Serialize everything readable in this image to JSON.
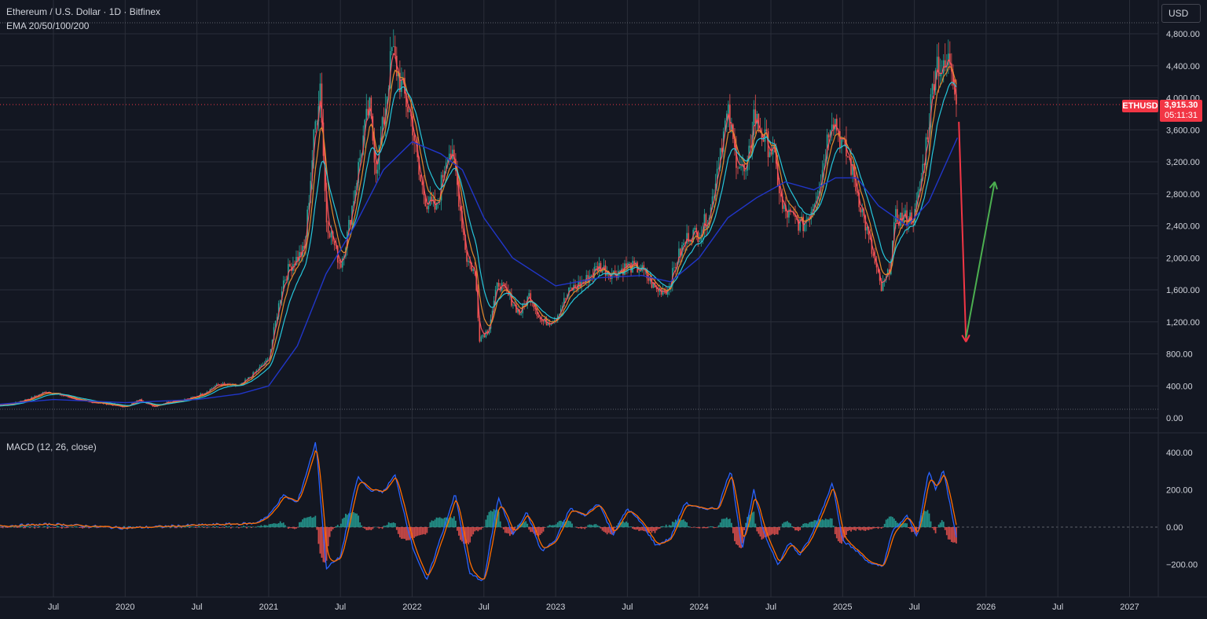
{
  "header": {
    "title": "Ethereum / U.S. Dollar · 1D · Bitfinex",
    "indicator": "EMA 20/50/100/200",
    "macd_label": "MACD (12, 26, close)"
  },
  "currency_button": "USD",
  "last_price": {
    "symbol": "ETHUSD",
    "price": "3,915.30",
    "countdown": "05:11:31",
    "color": "#f23645"
  },
  "colors": {
    "background": "#131722",
    "grid": "#2a2e39",
    "text": "#d1d4dc",
    "up": "#26a69a",
    "down": "#ef5350",
    "ema20": "#f7525f",
    "ema50": "#e58a2c",
    "ema100": "#26c6da",
    "ema200": "#2136c9",
    "macd_line": "#2962ff",
    "signal_line": "#ff6d00",
    "forecast_down": "#f23645",
    "forecast_up": "#4caf50"
  },
  "chart_data": [
    {
      "type": "line",
      "name": "price",
      "y_ticks": [
        "0.00",
        "400.00",
        "800.00",
        "1,200.00",
        "1,600.00",
        "2,000.00",
        "2,400.00",
        "2,800.00",
        "3,200.00",
        "3,600.00",
        "4,000.00",
        "4,400.00",
        "4,800.00"
      ],
      "ylim": [
        0,
        4900
      ],
      "x_ticks": [
        "Jul",
        "2020",
        "Jul",
        "2021",
        "Jul",
        "2022",
        "Jul",
        "2023",
        "Jul",
        "2024",
        "Jul",
        "2025",
        "Jul",
        "2026",
        "Jul",
        "2027"
      ],
      "x_tick_dates": [
        2019.5,
        2020.0,
        2020.5,
        2021.0,
        2021.5,
        2022.0,
        2022.5,
        2023.0,
        2023.5,
        2024.0,
        2024.5,
        2025.0,
        2025.5,
        2026.0,
        2026.5,
        2027.0
      ],
      "series": [
        {
          "points": [
            [
              2018.87,
              130
            ],
            [
              2019.0,
              140
            ],
            [
              2019.2,
              170
            ],
            [
              2019.35,
              250
            ],
            [
              2019.45,
              330
            ],
            [
              2019.55,
              290
            ],
            [
              2019.7,
              210
            ],
            [
              2019.85,
              180
            ],
            [
              2020.0,
              135
            ],
            [
              2020.1,
              230
            ],
            [
              2020.2,
              140
            ],
            [
              2020.3,
              200
            ],
            [
              2020.45,
              240
            ],
            [
              2020.55,
              310
            ],
            [
              2020.65,
              420
            ],
            [
              2020.8,
              400
            ],
            [
              2020.9,
              560
            ],
            [
              2021.0,
              730
            ],
            [
              2021.1,
              1700
            ],
            [
              2021.15,
              1900
            ],
            [
              2021.25,
              2100
            ],
            [
              2021.32,
              3600
            ],
            [
              2021.36,
              4200
            ],
            [
              2021.4,
              2500
            ],
            [
              2021.45,
              2200
            ],
            [
              2021.5,
              1900
            ],
            [
              2021.55,
              2300
            ],
            [
              2021.65,
              3400
            ],
            [
              2021.7,
              3900
            ],
            [
              2021.75,
              3100
            ],
            [
              2021.8,
              3700
            ],
            [
              2021.86,
              4600
            ],
            [
              2021.9,
              4300
            ],
            [
              2021.95,
              4000
            ],
            [
              2022.0,
              3700
            ],
            [
              2022.05,
              3000
            ],
            [
              2022.1,
              2700
            ],
            [
              2022.17,
              2600
            ],
            [
              2022.25,
              3400
            ],
            [
              2022.3,
              3100
            ],
            [
              2022.38,
              2000
            ],
            [
              2022.44,
              1800
            ],
            [
              2022.47,
              1000
            ],
            [
              2022.53,
              1100
            ],
            [
              2022.6,
              1700
            ],
            [
              2022.68,
              1500
            ],
            [
              2022.75,
              1300
            ],
            [
              2022.82,
              1550
            ],
            [
              2022.9,
              1200
            ],
            [
              2022.95,
              1200
            ],
            [
              2023.0,
              1250
            ],
            [
              2023.1,
              1600
            ],
            [
              2023.2,
              1700
            ],
            [
              2023.3,
              1900
            ],
            [
              2023.4,
              1800
            ],
            [
              2023.5,
              1900
            ],
            [
              2023.6,
              1850
            ],
            [
              2023.7,
              1600
            ],
            [
              2023.78,
              1600
            ],
            [
              2023.85,
              2000
            ],
            [
              2023.93,
              2300
            ],
            [
              2024.0,
              2300
            ],
            [
              2024.08,
              2600
            ],
            [
              2024.15,
              3400
            ],
            [
              2024.2,
              3800
            ],
            [
              2024.25,
              3300
            ],
            [
              2024.33,
              3000
            ],
            [
              2024.38,
              3800
            ],
            [
              2024.45,
              3500
            ],
            [
              2024.52,
              3300
            ],
            [
              2024.58,
              2600
            ],
            [
              2024.65,
              2500
            ],
            [
              2024.72,
              2400
            ],
            [
              2024.78,
              2600
            ],
            [
              2024.85,
              3000
            ],
            [
              2024.92,
              3800
            ],
            [
              2024.95,
              3700
            ],
            [
              2025.0,
              3400
            ],
            [
              2025.05,
              3200
            ],
            [
              2025.12,
              2700
            ],
            [
              2025.2,
              2100
            ],
            [
              2025.27,
              1600
            ],
            [
              2025.32,
              1800
            ],
            [
              2025.37,
              2500
            ],
            [
              2025.45,
              2500
            ],
            [
              2025.5,
              2500
            ],
            [
              2025.55,
              3000
            ],
            [
              2025.6,
              3700
            ],
            [
              2025.65,
              4500
            ],
            [
              2025.7,
              4300
            ],
            [
              2025.75,
              4500
            ],
            [
              2025.78,
              4200
            ],
            [
              2025.8,
              3915
            ]
          ]
        },
        {
          "name": "EMA 200",
          "points": [
            [
              2018.87,
              130
            ],
            [
              2019.5,
              230
            ],
            [
              2020.0,
              190
            ],
            [
              2020.5,
              230
            ],
            [
              2020.8,
              300
            ],
            [
              2021.0,
              400
            ],
            [
              2021.2,
              900
            ],
            [
              2021.4,
              1800
            ],
            [
              2021.6,
              2400
            ],
            [
              2021.8,
              3100
            ],
            [
              2022.0,
              3450
            ],
            [
              2022.2,
              3300
            ],
            [
              2022.35,
              3100
            ],
            [
              2022.5,
              2500
            ],
            [
              2022.7,
              2000
            ],
            [
              2023.0,
              1650
            ],
            [
              2023.3,
              1750
            ],
            [
              2023.6,
              1780
            ],
            [
              2023.8,
              1700
            ],
            [
              2024.0,
              2000
            ],
            [
              2024.2,
              2500
            ],
            [
              2024.4,
              2750
            ],
            [
              2024.6,
              2950
            ],
            [
              2024.8,
              2850
            ],
            [
              2024.95,
              3000
            ],
            [
              2025.1,
              3000
            ],
            [
              2025.25,
              2650
            ],
            [
              2025.45,
              2400
            ],
            [
              2025.6,
              2700
            ],
            [
              2025.8,
              3500
            ]
          ]
        }
      ]
    },
    {
      "type": "line",
      "name": "MACD (12, 26, close)",
      "y_ticks": [
        "400.00",
        "200.00",
        "0.00",
        "−200.00"
      ],
      "ylim": [
        -320,
        470
      ],
      "series": [
        {
          "name": "MACD",
          "points": [
            [
              2018.87,
              0
            ],
            [
              2019.5,
              15
            ],
            [
              2020.0,
              -5
            ],
            [
              2020.5,
              10
            ],
            [
              2020.9,
              20
            ],
            [
              2021.0,
              60
            ],
            [
              2021.1,
              170
            ],
            [
              2021.2,
              130
            ],
            [
              2021.33,
              460
            ],
            [
              2021.4,
              -220
            ],
            [
              2021.5,
              -160
            ],
            [
              2021.62,
              270
            ],
            [
              2021.7,
              200
            ],
            [
              2021.8,
              190
            ],
            [
              2021.88,
              280
            ],
            [
              2022.0,
              -100
            ],
            [
              2022.1,
              -290
            ],
            [
              2022.18,
              -100
            ],
            [
              2022.3,
              180
            ],
            [
              2022.4,
              -250
            ],
            [
              2022.5,
              -290
            ],
            [
              2022.6,
              160
            ],
            [
              2022.7,
              -40
            ],
            [
              2022.8,
              80
            ],
            [
              2022.9,
              -130
            ],
            [
              2023.0,
              -70
            ],
            [
              2023.1,
              100
            ],
            [
              2023.2,
              60
            ],
            [
              2023.3,
              130
            ],
            [
              2023.4,
              -40
            ],
            [
              2023.5,
              100
            ],
            [
              2023.6,
              20
            ],
            [
              2023.7,
              -100
            ],
            [
              2023.8,
              -60
            ],
            [
              2023.9,
              130
            ],
            [
              2024.0,
              100
            ],
            [
              2024.13,
              100
            ],
            [
              2024.22,
              310
            ],
            [
              2024.3,
              -120
            ],
            [
              2024.38,
              200
            ],
            [
              2024.45,
              -30
            ],
            [
              2024.55,
              -200
            ],
            [
              2024.63,
              -80
            ],
            [
              2024.7,
              -150
            ],
            [
              2024.78,
              -50
            ],
            [
              2024.85,
              80
            ],
            [
              2024.93,
              240
            ],
            [
              2025.0,
              -70
            ],
            [
              2025.1,
              -130
            ],
            [
              2025.2,
              -200
            ],
            [
              2025.28,
              -210
            ],
            [
              2025.35,
              -20
            ],
            [
              2025.45,
              60
            ],
            [
              2025.52,
              -50
            ],
            [
              2025.6,
              300
            ],
            [
              2025.65,
              200
            ],
            [
              2025.7,
              310
            ],
            [
              2025.76,
              80
            ],
            [
              2025.8,
              -80
            ]
          ]
        }
      ]
    }
  ],
  "forecast": {
    "down": {
      "from": [
        2025.81,
        3700
      ],
      "to": [
        2025.86,
        950
      ]
    },
    "up": {
      "from": [
        2025.86,
        1000
      ],
      "to": [
        2026.06,
        2950
      ]
    }
  }
}
